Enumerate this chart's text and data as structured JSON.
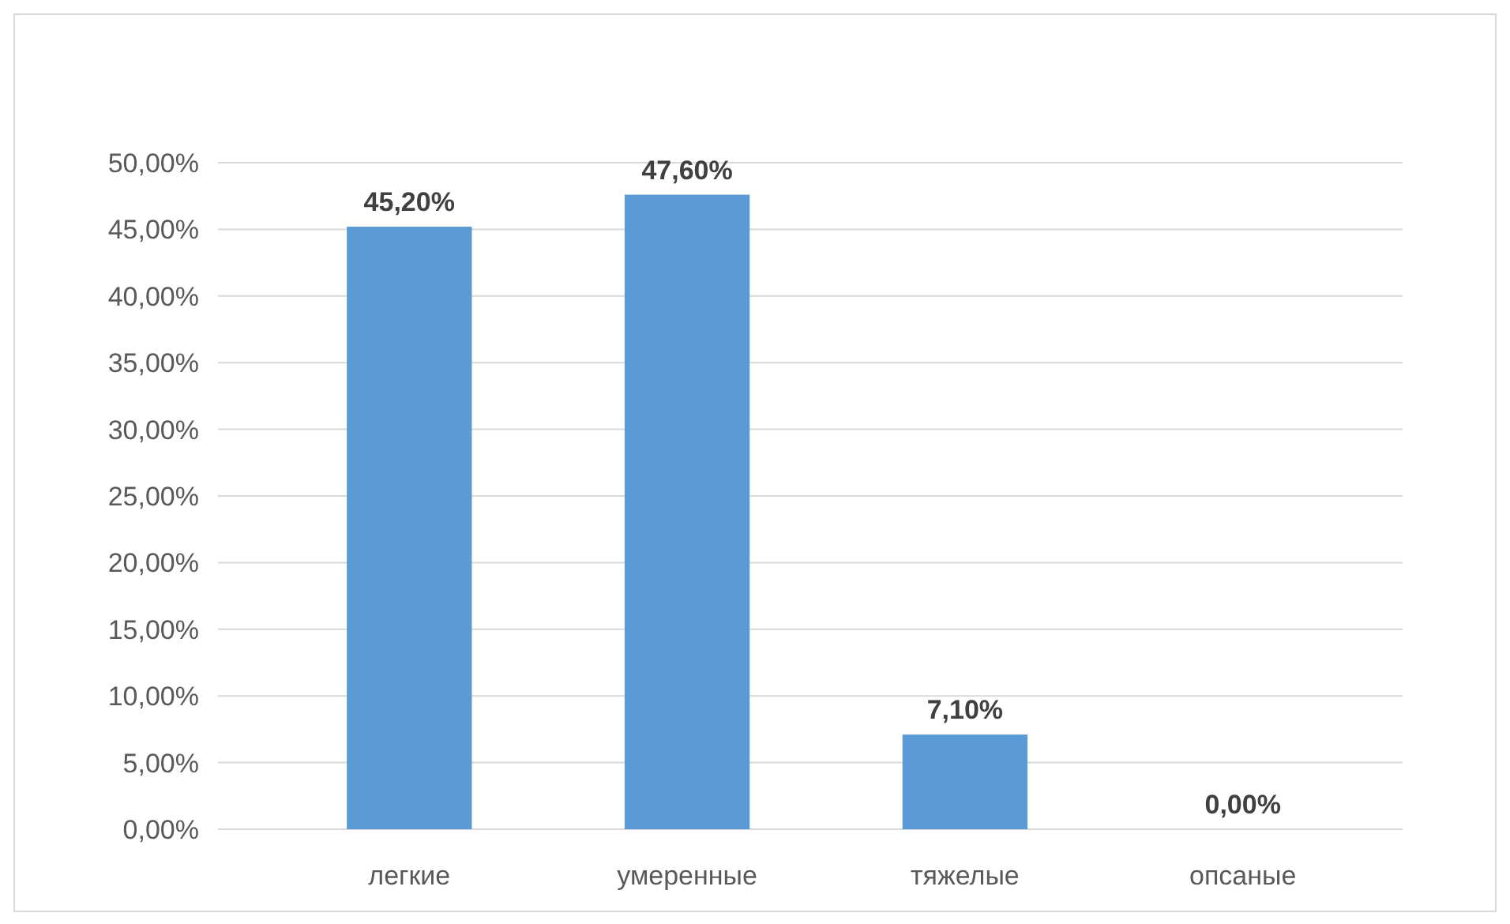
{
  "chart_data": {
    "type": "bar",
    "categories": [
      "легкие",
      "умеренные",
      "тяжелые",
      "опсаные"
    ],
    "values": [
      45.2,
      47.6,
      7.1,
      0
    ],
    "value_labels": [
      "45,20%",
      "47,60%",
      "7,10%",
      "0,00%"
    ],
    "color": "#5b9bd5",
    "ylim": [
      0,
      50
    ],
    "yticks": [
      {
        "value": 0,
        "label": "0,00%"
      },
      {
        "value": 5,
        "label": "5,00%"
      },
      {
        "value": 10,
        "label": "10,00%"
      },
      {
        "value": 15,
        "label": "15,00%"
      },
      {
        "value": 20,
        "label": "20,00%"
      },
      {
        "value": 25,
        "label": "25,00%"
      },
      {
        "value": 30,
        "label": "30,00%"
      },
      {
        "value": 35,
        "label": "35,00%"
      },
      {
        "value": 40,
        "label": "40,00%"
      },
      {
        "value": 45,
        "label": "45,00%"
      },
      {
        "value": 50,
        "label": "50,00%"
      }
    ],
    "grid": "y"
  }
}
